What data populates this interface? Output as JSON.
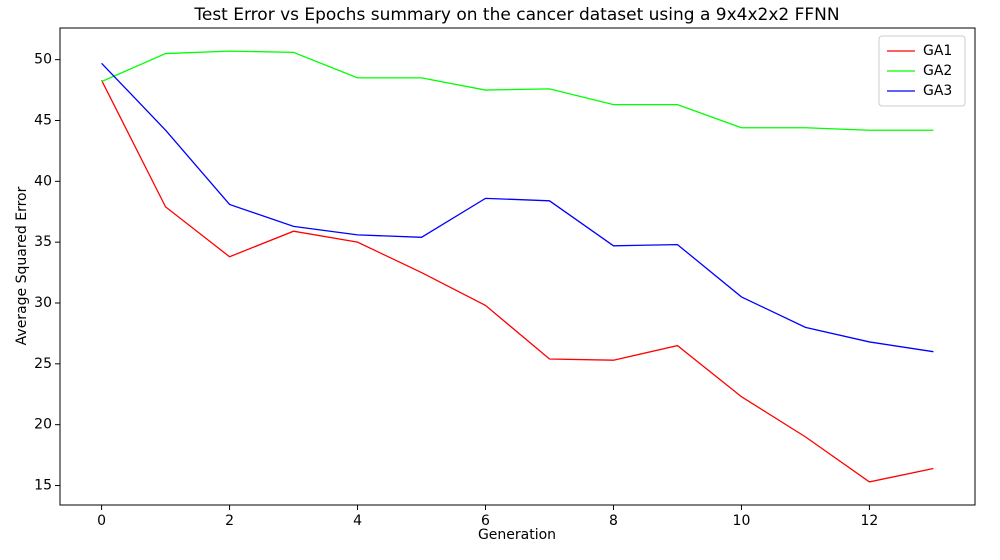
{
  "chart_data": {
    "type": "line",
    "title": "Test Error vs Epochs summary on the cancer dataset using a 9x4x2x2 FFNN",
    "x_label": "Generation",
    "y_label": "Average Squared Error",
    "x": [
      0,
      1,
      2,
      3,
      4,
      5,
      6,
      7,
      8,
      9,
      10,
      11,
      12,
      13
    ],
    "series": [
      {
        "name": "GA1",
        "color": "#ff0000",
        "values": [
          48.3,
          37.9,
          33.8,
          35.9,
          35.0,
          32.5,
          29.8,
          25.4,
          25.3,
          26.5,
          22.3,
          19.0,
          15.3,
          16.4
        ]
      },
      {
        "name": "GA2",
        "color": "#00ff00",
        "values": [
          48.2,
          50.5,
          50.7,
          50.6,
          48.5,
          48.5,
          47.5,
          47.6,
          46.3,
          46.3,
          44.4,
          44.4,
          44.2,
          44.2
        ]
      },
      {
        "name": "GA3",
        "color": "#0000ff",
        "values": [
          49.7,
          44.2,
          38.1,
          36.3,
          35.6,
          35.4,
          38.6,
          38.4,
          34.7,
          34.8,
          30.5,
          28.0,
          26.8,
          26.0
        ]
      }
    ],
    "xlim": [
      -0.65,
      13.65
    ],
    "xticks": [
      0,
      2,
      4,
      6,
      8,
      10,
      12
    ],
    "ylim": [
      13.4,
      52.6
    ],
    "yticks": [
      15,
      20,
      25,
      30,
      35,
      40,
      45,
      50
    ],
    "legend": "upper-right"
  }
}
